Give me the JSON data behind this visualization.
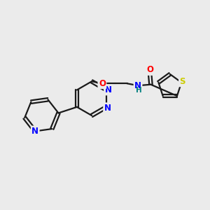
{
  "bg_color": "#ebebeb",
  "bond_color": "#1a1a1a",
  "atom_colors": {
    "N": "#0000ff",
    "O": "#ff0000",
    "S": "#cccc00",
    "NH": "#008080"
  },
  "figsize": [
    3.0,
    3.0
  ],
  "dpi": 100
}
